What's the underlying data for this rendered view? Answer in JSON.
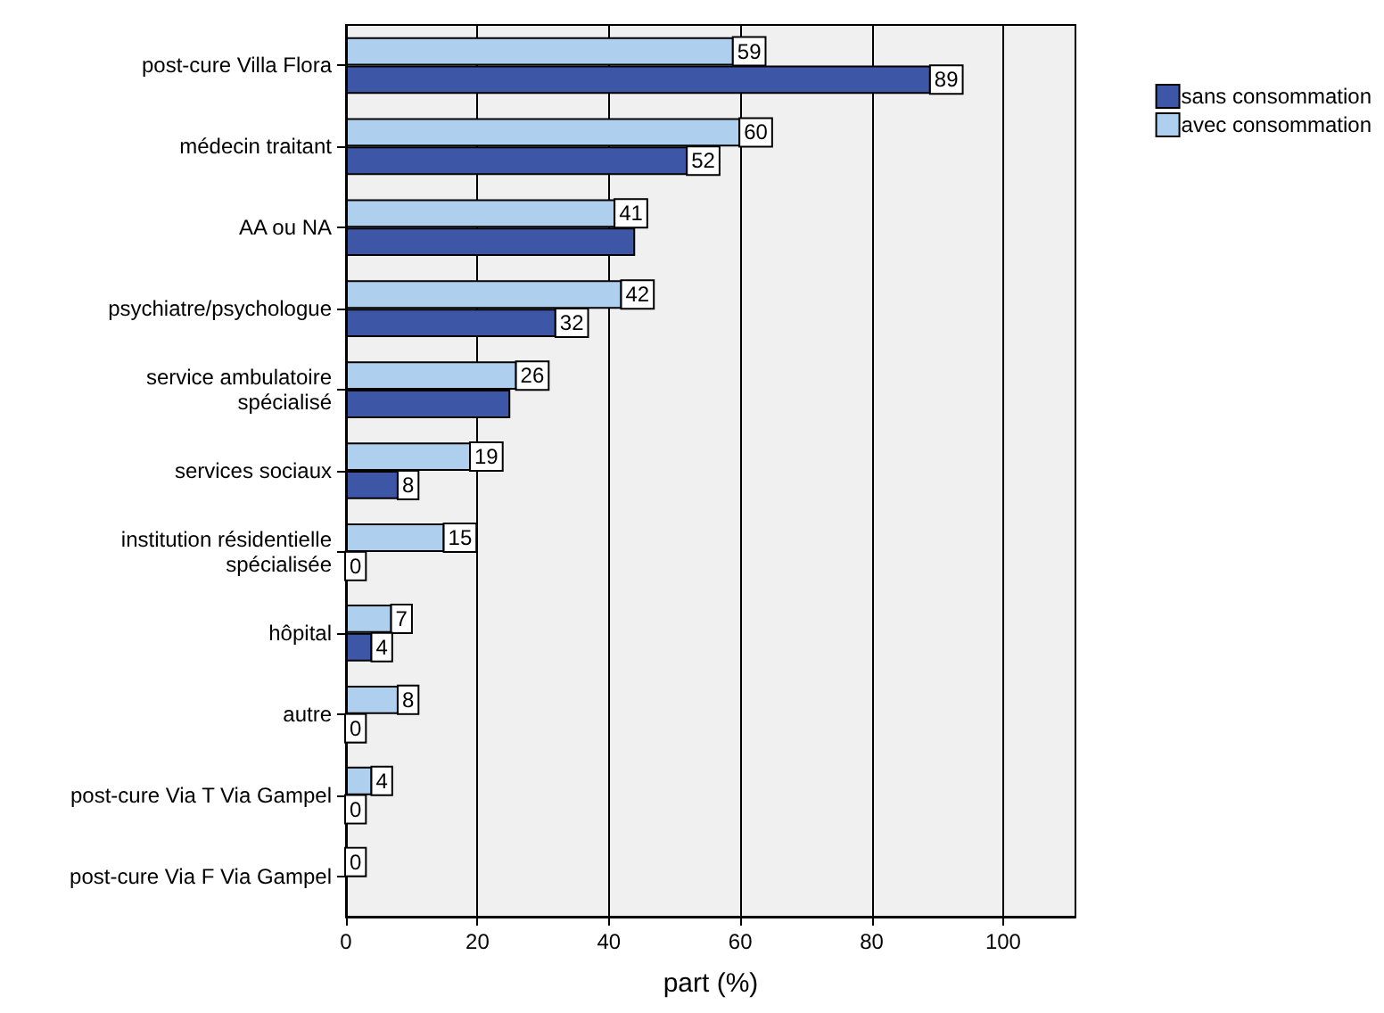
{
  "chart_data": {
    "type": "bar",
    "orientation": "horizontal",
    "xlabel": "part (%)",
    "categories": [
      "post-cure Villa Flora",
      "médecin traitant",
      "AA ou NA",
      "psychiatre/psychologue",
      "service ambulatoire\nspécialisé",
      "services sociaux",
      "institution résidentielle\nspécialisée",
      "hôpital",
      "autre",
      "post-cure Via T Via Gampel",
      "post-cure Via F Via Gampel"
    ],
    "series": [
      {
        "name": "avec consommation",
        "color": "#aed0ee",
        "values": [
          59,
          60,
          41,
          42,
          26,
          19,
          15,
          7,
          8,
          4,
          0
        ],
        "value_labels": [
          "59",
          "60",
          "41",
          "42",
          "26",
          "19",
          "15",
          "7",
          "8",
          "4",
          "0"
        ]
      },
      {
        "name": "sans consommation",
        "color": "#3d56a6",
        "values": [
          89,
          52,
          44,
          32,
          25,
          8,
          0,
          4,
          0,
          0,
          null
        ],
        "value_labels": [
          "89",
          "52",
          null,
          "32",
          null,
          "8",
          "0",
          "4",
          "0",
          "0",
          null
        ]
      }
    ],
    "xlim": [
      0,
      111
    ],
    "xticks": [
      0,
      20,
      40,
      60,
      80,
      100
    ],
    "grid": "x",
    "legend": "top right"
  }
}
